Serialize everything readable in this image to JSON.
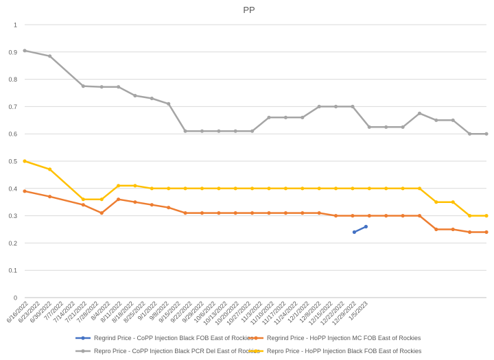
{
  "chart_data": {
    "type": "line",
    "title": "PP",
    "xlabel": "",
    "ylabel": "",
    "ylim": [
      0,
      1
    ],
    "yticks": [
      "0",
      "0.1",
      "0.2",
      "0.3",
      "0.4",
      "0.5",
      "0.6",
      "0.7",
      "0.8",
      "0.9",
      "1"
    ],
    "grid": true,
    "legend_position": "bottom",
    "categories": [
      "6/16/2022",
      "6/23/2022",
      "6/30/2022",
      "7/7/2022",
      "7/14/2022",
      "7/21/2022",
      "7/28/2022",
      "8/4/2022",
      "8/11/2022",
      "8/18/2022",
      "8/25/2022",
      "9/1/2022",
      "9/8/2022",
      "9/15/2022",
      "9/22/2022",
      "9/29/2022",
      "10/6/2022",
      "10/13/2022",
      "10/20/2022",
      "10/27/2022",
      "11/3/2022",
      "11/10/2022",
      "11/17/2022",
      "11/24/2022",
      "12/1/2022",
      "12/8/2022",
      "12/15/2022",
      "12/22/2022",
      "12/29/2022",
      "1/5/2023"
    ],
    "x_dates": [
      "2022-06-16",
      "2022-06-23",
      "2022-06-30",
      "2022-07-07",
      "2022-07-14",
      "2022-07-21",
      "2022-07-28",
      "2022-08-04",
      "2022-08-11",
      "2022-08-18",
      "2022-08-25",
      "2022-09-01",
      "2022-09-08",
      "2022-09-15",
      "2022-09-22",
      "2022-09-29",
      "2022-10-06",
      "2022-10-13",
      "2022-10-20",
      "2022-10-27",
      "2022-11-03",
      "2022-11-10",
      "2022-11-17",
      "2022-11-24",
      "2022-12-01",
      "2022-12-08",
      "2022-12-15",
      "2022-12-22",
      "2022-12-29",
      "2023-01-05"
    ],
    "series": [
      {
        "name": "Regrind Price - CoPP Injection Black FOB East of Rockies",
        "color": "#4472C4",
        "points": [
          [
            "2022-12-29",
            0.24
          ],
          [
            "2023-01-05",
            0.26
          ]
        ]
      },
      {
        "name": "Regrind Price - HoPP Injection MC FOB East of Rockies",
        "color": "#ED7D31",
        "points": [
          [
            "2022-06-15",
            0.39
          ],
          [
            "2022-06-30",
            0.37
          ],
          [
            "2022-07-20",
            0.34
          ],
          [
            "2022-07-31",
            0.31
          ],
          [
            "2022-08-10",
            0.36
          ],
          [
            "2022-08-20",
            0.35
          ],
          [
            "2022-08-30",
            0.34
          ],
          [
            "2022-09-09",
            0.33
          ],
          [
            "2022-09-19",
            0.31
          ],
          [
            "2022-09-29",
            0.31
          ],
          [
            "2022-10-09",
            0.31
          ],
          [
            "2022-10-19",
            0.31
          ],
          [
            "2022-10-29",
            0.31
          ],
          [
            "2022-11-08",
            0.31
          ],
          [
            "2022-11-18",
            0.31
          ],
          [
            "2022-11-28",
            0.31
          ],
          [
            "2022-12-08",
            0.31
          ],
          [
            "2022-12-18",
            0.3
          ],
          [
            "2022-12-28",
            0.3
          ],
          [
            "2023-01-07",
            0.3
          ],
          [
            "2023-01-17",
            0.3
          ],
          [
            "2023-01-27",
            0.3
          ],
          [
            "2023-02-06",
            0.3
          ],
          [
            "2023-02-16",
            0.25
          ],
          [
            "2023-02-26",
            0.25
          ],
          [
            "2023-03-08",
            0.24
          ],
          [
            "2023-03-18",
            0.24
          ]
        ]
      },
      {
        "name": "Repro Price - CoPP Injection Black PCR Del East of Rockies",
        "color": "#A5A5A5",
        "points": [
          [
            "2022-06-15",
            0.905
          ],
          [
            "2022-06-30",
            0.885
          ],
          [
            "2022-07-20",
            0.775
          ],
          [
            "2022-07-31",
            0.772
          ],
          [
            "2022-08-10",
            0.772
          ],
          [
            "2022-08-20",
            0.74
          ],
          [
            "2022-08-30",
            0.73
          ],
          [
            "2022-09-09",
            0.71
          ],
          [
            "2022-09-19",
            0.61
          ],
          [
            "2022-09-29",
            0.61
          ],
          [
            "2022-10-09",
            0.61
          ],
          [
            "2022-10-19",
            0.61
          ],
          [
            "2022-10-29",
            0.61
          ],
          [
            "2022-11-08",
            0.66
          ],
          [
            "2022-11-18",
            0.66
          ],
          [
            "2022-11-28",
            0.66
          ],
          [
            "2022-12-08",
            0.7
          ],
          [
            "2022-12-18",
            0.7
          ],
          [
            "2022-12-28",
            0.7
          ],
          [
            "2023-01-07",
            0.625
          ],
          [
            "2023-01-17",
            0.625
          ],
          [
            "2023-01-27",
            0.625
          ],
          [
            "2023-02-06",
            0.675
          ],
          [
            "2023-02-16",
            0.65
          ],
          [
            "2023-02-26",
            0.65
          ],
          [
            "2023-03-08",
            0.6
          ],
          [
            "2023-03-18",
            0.6
          ]
        ]
      },
      {
        "name": "Repro Price - HoPP Injection Black FOB East of Rockies",
        "color": "#FFC000",
        "points": [
          [
            "2022-06-15",
            0.5
          ],
          [
            "2022-06-30",
            0.47
          ],
          [
            "2022-07-20",
            0.36
          ],
          [
            "2022-07-31",
            0.36
          ],
          [
            "2022-08-10",
            0.41
          ],
          [
            "2022-08-20",
            0.41
          ],
          [
            "2022-08-30",
            0.4
          ],
          [
            "2022-09-09",
            0.4
          ],
          [
            "2022-09-19",
            0.4
          ],
          [
            "2022-09-29",
            0.4
          ],
          [
            "2022-10-09",
            0.4
          ],
          [
            "2022-10-19",
            0.4
          ],
          [
            "2022-10-29",
            0.4
          ],
          [
            "2022-11-08",
            0.4
          ],
          [
            "2022-11-18",
            0.4
          ],
          [
            "2022-11-28",
            0.4
          ],
          [
            "2022-12-08",
            0.4
          ],
          [
            "2022-12-18",
            0.4
          ],
          [
            "2022-12-28",
            0.4
          ],
          [
            "2023-01-07",
            0.4
          ],
          [
            "2023-01-17",
            0.4
          ],
          [
            "2023-01-27",
            0.4
          ],
          [
            "2023-02-06",
            0.4
          ],
          [
            "2023-02-16",
            0.35
          ],
          [
            "2023-02-26",
            0.35
          ],
          [
            "2023-03-08",
            0.3
          ],
          [
            "2023-03-18",
            0.3
          ]
        ]
      }
    ]
  }
}
